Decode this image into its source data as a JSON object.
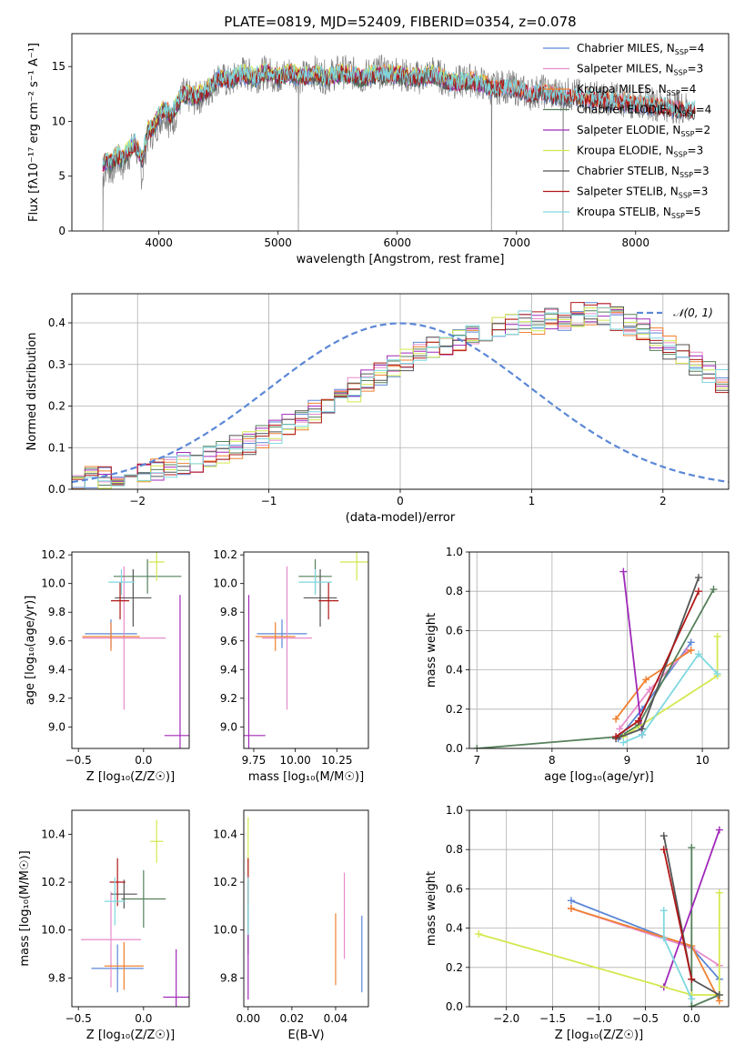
{
  "figure_title": "PLATE=0819, MJD=52409, FIBERID=0354, z=0.078",
  "colors": {
    "Chabrier MILES": "#5b87d6",
    "Salpeter MILES": "#e88ccb",
    "Kroupa MILES": "#f08030",
    "Chabrier ELODIE": "#55805a",
    "Salpeter ELODIE": "#a029b8",
    "Kroupa ELODIE": "#d4e84f",
    "Chabrier STELIB": "#555555",
    "Salpeter STELIB": "#b01818",
    "Kroupa STELIB": "#7fd8e0"
  },
  "chart_data": [
    {
      "id": "spectrum",
      "type": "line",
      "title": "PLATE=0819, MJD=52409, FIBERID=0354, z=0.078",
      "xlabel": "wavelength [Angstrom, rest frame]",
      "ylabel": "Flux [fλ10⁻¹⁷ erg cm⁻² s⁻¹ A⁻¹]",
      "xlim": [
        3270,
        8780
      ],
      "ylim": [
        0,
        18
      ],
      "xticks": [
        4000,
        5000,
        6000,
        7000,
        8000
      ],
      "yticks": [
        0,
        5,
        10,
        15
      ],
      "grid": false,
      "legend_position": "upper right",
      "data_series": {
        "name": "data",
        "color": "#808080",
        "x": [
          3530,
          3560,
          3600,
          3650,
          3700,
          3750,
          3800,
          3860,
          3900,
          3950,
          4000,
          4050,
          4100,
          4200,
          4300,
          4400,
          4500,
          4600,
          4700,
          4800,
          4900,
          5000,
          5100,
          5200,
          5300,
          5400,
          5500,
          5600,
          5700,
          5800,
          5900,
          6000,
          6100,
          6200,
          6300,
          6400,
          6500,
          6600,
          6700,
          6800,
          6900,
          7000,
          7100,
          7200,
          7300,
          7400
        ],
        "y": [
          5.0,
          6.0,
          5.5,
          6.5,
          6.0,
          7.0,
          8.0,
          5.0,
          8.5,
          9.0,
          10.0,
          11.0,
          9.5,
          12.5,
          12.0,
          12.5,
          14.0,
          13.5,
          14.5,
          14.0,
          14.5,
          14.0,
          14.5,
          14.0,
          14.5,
          14.0,
          14.5,
          14.5,
          14.0,
          14.5,
          14.5,
          14.5,
          14.0,
          14.0,
          14.5,
          13.8,
          13.5,
          13.8,
          13.5,
          13.0,
          13.2,
          13.0,
          12.5,
          12.8,
          12.5,
          12.5
        ]
      },
      "model_x": [
        3530,
        3560,
        3600,
        3650,
        3700,
        3750,
        3800,
        3860,
        3900,
        3950,
        4000,
        4050,
        4100,
        4200,
        4300,
        4400,
        4500,
        4600,
        4700,
        4800,
        4900,
        5000,
        5100,
        5200,
        5300,
        5400,
        5500,
        5600,
        5700,
        5800,
        5900,
        6000,
        6100,
        6200,
        6300,
        6400,
        6500,
        6600,
        6700,
        6800,
        6900,
        7000,
        7100,
        7200,
        7300,
        7400
      ],
      "model_y": [
        6.0,
        6.5,
        6.2,
        7.0,
        6.5,
        7.5,
        8.0,
        6.5,
        9.0,
        9.5,
        10.5,
        11.2,
        10.5,
        12.5,
        12.3,
        12.8,
        14.0,
        13.8,
        14.3,
        14.0,
        14.5,
        14.0,
        14.4,
        14.0,
        14.3,
        14.0,
        14.3,
        14.3,
        14.0,
        14.3,
        14.3,
        14.3,
        14.0,
        14.0,
        14.3,
        13.8,
        13.5,
        13.7,
        13.5,
        13.0,
        13.1,
        13.0,
        12.5,
        12.7,
        12.4,
        12.3
      ],
      "series": [
        {
          "name": "Chabrier MILES",
          "n_ssp": "4",
          "x_end": 8400
        },
        {
          "name": "Salpeter MILES",
          "n_ssp": "3",
          "x_end": 8400
        },
        {
          "name": "Kroupa MILES",
          "n_ssp": "4",
          "x_end": 8400
        },
        {
          "name": "Chabrier ELODIE",
          "n_ssp": "4",
          "x_end": 6800
        },
        {
          "name": "Salpeter ELODIE",
          "n_ssp": "2",
          "x_end": 6800
        },
        {
          "name": "Kroupa ELODIE",
          "n_ssp": "3",
          "x_end": 6800
        },
        {
          "name": "Chabrier STELIB",
          "n_ssp": "3",
          "x_end": 8500
        },
        {
          "name": "Salpeter STELIB",
          "n_ssp": "3",
          "x_end": 8500
        },
        {
          "name": "Kroupa STELIB",
          "n_ssp": "5",
          "x_end": 8500
        }
      ]
    },
    {
      "id": "residuals",
      "type": "histogram",
      "xlabel": "(data-model)/error",
      "ylabel": "Normed distribution",
      "xlim": [
        -2.5,
        2.5
      ],
      "ylim": [
        0,
        0.47
      ],
      "xticks": [
        -2,
        -1,
        0,
        1,
        2
      ],
      "yticks": [
        0.0,
        0.1,
        0.2,
        0.3,
        0.4
      ],
      "grid": true,
      "legend_position": "upper right",
      "reference_curve": {
        "label": "𝒩(0, 1)",
        "mean": 0,
        "sigma": 1,
        "color": "#5b87d6"
      },
      "bin_start": -2.5,
      "bin_width": 0.1,
      "base_values": [
        0.02,
        0.025,
        0.028,
        0.032,
        0.036,
        0.04,
        0.045,
        0.052,
        0.06,
        0.068,
        0.078,
        0.088,
        0.1,
        0.112,
        0.125,
        0.14,
        0.155,
        0.17,
        0.188,
        0.205,
        0.222,
        0.24,
        0.258,
        0.275,
        0.292,
        0.31,
        0.325,
        0.34,
        0.352,
        0.363,
        0.374,
        0.382,
        0.39,
        0.396,
        0.4,
        0.402,
        0.405,
        0.41,
        0.42,
        0.425,
        0.42,
        0.41,
        0.395,
        0.38,
        0.36,
        0.34,
        0.32,
        0.3,
        0.28,
        0.262,
        0.24,
        0.22,
        0.2,
        0.18,
        0.16,
        0.14,
        0.125,
        0.11,
        0.095,
        0.085,
        0.075,
        0.065,
        0.058,
        0.05,
        0.045,
        0.04,
        0.036,
        0.032,
        0.028,
        0.025,
        0.022,
        0.02,
        0.018,
        0.016,
        0.015,
        0.014,
        0.013,
        0.012,
        0.011,
        0.01
      ],
      "series": [
        "Chabrier MILES",
        "Salpeter MILES",
        "Kroupa MILES",
        "Chabrier ELODIE",
        "Salpeter ELODIE",
        "Kroupa ELODIE",
        "Chabrier STELIB",
        "Salpeter STELIB",
        "Kroupa STELIB"
      ]
    },
    {
      "id": "age_vs_Z",
      "type": "errorbar",
      "xlabel": "Z [log₁₀(Z/Z☉)]",
      "ylabel": "age  [log₁₀(age/yr)]",
      "xlim": [
        -0.55,
        0.35
      ],
      "ylim": [
        8.85,
        10.22
      ],
      "xticks": [
        -0.5,
        0.0
      ],
      "yticks": [
        9.0,
        9.2,
        9.4,
        9.6,
        9.8,
        10.0,
        10.2
      ],
      "points": [
        {
          "name": "Chabrier MILES",
          "x": -0.25,
          "xerr": 0.2,
          "y": 9.65,
          "yerr": 0.1
        },
        {
          "name": "Salpeter MILES",
          "x": -0.15,
          "xerr": 0.32,
          "y": 9.62,
          "yerr": 0.5
        },
        {
          "name": "Kroupa MILES",
          "x": -0.25,
          "xerr": 0.22,
          "y": 9.63,
          "yerr": 0.1
        },
        {
          "name": "Chabrier ELODIE",
          "x": 0.03,
          "xerr": 0.26,
          "y": 10.05,
          "yerr": 0.12
        },
        {
          "name": "Salpeter ELODIE",
          "x": 0.28,
          "xerr": 0.12,
          "y": 8.94,
          "yerr": 0.98
        },
        {
          "name": "Kroupa ELODIE",
          "x": 0.1,
          "xerr": 0.06,
          "y": 10.15,
          "yerr": 0.13
        },
        {
          "name": "Chabrier STELIB",
          "x": -0.08,
          "xerr": 0.14,
          "y": 9.9,
          "yerr": 0.2
        },
        {
          "name": "Salpeter STELIB",
          "x": -0.18,
          "xerr": 0.07,
          "y": 9.88,
          "yerr": 0.13
        },
        {
          "name": "Kroupa STELIB",
          "x": -0.17,
          "xerr": 0.1,
          "y": 10.01,
          "yerr": 0.09
        }
      ]
    },
    {
      "id": "age_vs_mass",
      "type": "errorbar",
      "xlabel": "mass [log₁₀(M/M☉)]",
      "ylabel": "",
      "xlim": [
        9.69,
        10.44
      ],
      "ylim": [
        8.85,
        10.22
      ],
      "xticks": [
        9.75,
        10.0,
        10.25
      ],
      "yticks": [
        9.0,
        9.2,
        9.4,
        9.6,
        9.8,
        10.0,
        10.2
      ],
      "points": [
        {
          "name": "Chabrier MILES",
          "x": 9.92,
          "xerr": 0.15,
          "y": 9.65,
          "yerr": 0.1
        },
        {
          "name": "Salpeter MILES",
          "x": 9.95,
          "xerr": 0.15,
          "y": 9.62,
          "yerr": 0.5
        },
        {
          "name": "Kroupa MILES",
          "x": 9.88,
          "xerr": 0.12,
          "y": 9.63,
          "yerr": 0.1
        },
        {
          "name": "Chabrier ELODIE",
          "x": 10.12,
          "xerr": 0.1,
          "y": 10.05,
          "yerr": 0.12
        },
        {
          "name": "Salpeter ELODIE",
          "x": 9.72,
          "xerr": 0.1,
          "y": 8.94,
          "yerr": 0.98
        },
        {
          "name": "Kroupa ELODIE",
          "x": 10.37,
          "xerr": 0.1,
          "y": 10.15,
          "yerr": 0.13
        },
        {
          "name": "Chabrier STELIB",
          "x": 10.15,
          "xerr": 0.1,
          "y": 9.9,
          "yerr": 0.2
        },
        {
          "name": "Salpeter STELIB",
          "x": 10.2,
          "xerr": 0.06,
          "y": 9.88,
          "yerr": 0.13
        },
        {
          "name": "Kroupa STELIB",
          "x": 10.12,
          "xerr": 0.1,
          "y": 10.01,
          "yerr": 0.09
        }
      ]
    },
    {
      "id": "weight_vs_age",
      "type": "line",
      "xlabel": "age  [log₁₀(age/yr)]",
      "ylabel": "mass weight",
      "xlim": [
        6.9,
        10.35
      ],
      "ylim": [
        0,
        1
      ],
      "xticks": [
        7,
        8,
        9,
        10
      ],
      "yticks": [
        0.0,
        0.2,
        0.4,
        0.6,
        0.8,
        1.0
      ],
      "grid": true,
      "series": [
        {
          "name": "Chabrier MILES",
          "x": [
            8.88,
            9.2,
            9.85
          ],
          "y": [
            0.05,
            0.2,
            0.54
          ]
        },
        {
          "name": "Salpeter MILES",
          "x": [
            8.9,
            9.3,
            9.8
          ],
          "y": [
            0.1,
            0.3,
            0.5
          ]
        },
        {
          "name": "Kroupa MILES",
          "x": [
            8.85,
            9.25,
            9.85
          ],
          "y": [
            0.15,
            0.35,
            0.5
          ]
        },
        {
          "name": "Chabrier ELODIE",
          "x": [
            7.0,
            8.9,
            9.15,
            10.15
          ],
          "y": [
            0.0,
            0.06,
            0.12,
            0.81
          ]
        },
        {
          "name": "Salpeter ELODIE",
          "x": [
            8.95,
            9.2
          ],
          "y": [
            0.9,
            0.07
          ]
        },
        {
          "name": "Kroupa ELODIE",
          "x": [
            8.95,
            10.2,
            10.2
          ],
          "y": [
            0.06,
            0.37,
            0.57
          ]
        },
        {
          "name": "Chabrier STELIB",
          "x": [
            8.85,
            9.2,
            9.95
          ],
          "y": [
            0.05,
            0.1,
            0.87
          ]
        },
        {
          "name": "Salpeter STELIB",
          "x": [
            8.85,
            9.15,
            9.95
          ],
          "y": [
            0.06,
            0.14,
            0.8
          ]
        },
        {
          "name": "Kroupa STELIB",
          "x": [
            8.95,
            9.2,
            9.95,
            10.2
          ],
          "y": [
            0.03,
            0.07,
            0.48,
            0.38
          ]
        }
      ]
    },
    {
      "id": "mass_vs_Z",
      "type": "errorbar",
      "xlabel": "Z [log₁₀(Z/Z☉)]",
      "ylabel": "mass [log₁₀(M/M☉)]",
      "xlim": [
        -0.55,
        0.35
      ],
      "ylim": [
        9.68,
        10.5
      ],
      "xticks": [
        -0.5,
        0.0
      ],
      "yticks": [
        9.8,
        10.0,
        10.2,
        10.4
      ],
      "points": [
        {
          "name": "Chabrier MILES",
          "x": -0.2,
          "xerr": 0.2,
          "y": 9.84,
          "yerr": 0.1
        },
        {
          "name": "Salpeter MILES",
          "x": -0.25,
          "xerr": 0.23,
          "y": 9.96,
          "yerr": 0.2
        },
        {
          "name": "Kroupa MILES",
          "x": -0.15,
          "xerr": 0.15,
          "y": 9.85,
          "yerr": 0.1
        },
        {
          "name": "Chabrier ELODIE",
          "x": 0.0,
          "xerr": 0.17,
          "y": 10.13,
          "yerr": 0.12
        },
        {
          "name": "Salpeter ELODIE",
          "x": 0.25,
          "xerr": 0.1,
          "y": 9.72,
          "yerr": 0.2
        },
        {
          "name": "Kroupa ELODIE",
          "x": 0.1,
          "xerr": 0.05,
          "y": 10.37,
          "yerr": 0.09
        },
        {
          "name": "Chabrier STELIB",
          "x": -0.15,
          "xerr": 0.1,
          "y": 10.15,
          "yerr": 0.06
        },
        {
          "name": "Salpeter STELIB",
          "x": -0.2,
          "xerr": 0.06,
          "y": 10.2,
          "yerr": 0.1
        },
        {
          "name": "Kroupa STELIB",
          "x": -0.22,
          "xerr": 0.08,
          "y": 10.12,
          "yerr": 0.1
        }
      ]
    },
    {
      "id": "mass_vs_ebv",
      "type": "errorbar",
      "xlabel": "E(B-V)",
      "ylabel": "",
      "xlim": [
        -0.002,
        0.055
      ],
      "ylim": [
        9.68,
        10.5
      ],
      "xticks": [
        0.0,
        0.02,
        0.04
      ],
      "yticks": [
        9.8,
        10.0,
        10.2,
        10.4
      ],
      "points": [
        {
          "name": "Chabrier MILES",
          "x": 0.052,
          "xerr": 0,
          "y": 9.9,
          "yerr": 0.16
        },
        {
          "name": "Salpeter MILES",
          "x": 0.044,
          "xerr": 0,
          "y": 10.06,
          "yerr": 0.18
        },
        {
          "name": "Kroupa MILES",
          "x": 0.04,
          "xerr": 0,
          "y": 9.92,
          "yerr": 0.15
        },
        {
          "name": "Chabrier ELODIE",
          "x": 0.0,
          "xerr": 0,
          "y": 10.0,
          "yerr": 0.1
        },
        {
          "name": "Salpeter ELODIE",
          "x": 0.0,
          "xerr": 0,
          "y": 9.85,
          "yerr": 0.14
        },
        {
          "name": "Kroupa ELODIE",
          "x": 0.0,
          "xerr": 0,
          "y": 10.35,
          "yerr": 0.12
        },
        {
          "name": "Chabrier STELIB",
          "x": 0.0,
          "xerr": 0,
          "y": 10.1,
          "yerr": 0.1
        },
        {
          "name": "Salpeter STELIB",
          "x": 0.0,
          "xerr": 0,
          "y": 10.2,
          "yerr": 0.1
        },
        {
          "name": "Kroupa STELIB",
          "x": 0.0,
          "xerr": 0,
          "y": 10.1,
          "yerr": 0.12
        }
      ]
    },
    {
      "id": "weight_vs_Z",
      "type": "line",
      "xlabel": "Z [log₁₀(Z/Z☉)]",
      "ylabel": "mass weight",
      "xlim": [
        -2.4,
        0.4
      ],
      "ylim": [
        0,
        1
      ],
      "xticks": [
        -2.0,
        -1.5,
        -1.0,
        -0.5,
        0.0
      ],
      "yticks": [
        0.0,
        0.2,
        0.4,
        0.6,
        0.8,
        1.0
      ],
      "grid": true,
      "series": [
        {
          "name": "Chabrier MILES",
          "x": [
            -1.3,
            0.0,
            0.3
          ],
          "y": [
            0.54,
            0.3,
            0.14
          ]
        },
        {
          "name": "Salpeter MILES",
          "x": [
            -1.3,
            0.0,
            0.3
          ],
          "y": [
            0.5,
            0.3,
            0.21
          ]
        },
        {
          "name": "Kroupa MILES",
          "x": [
            -1.3,
            0.0,
            0.3
          ],
          "y": [
            0.5,
            0.31,
            0.03
          ]
        },
        {
          "name": "Chabrier ELODIE",
          "x": [
            0.0,
            0.0,
            0.3
          ],
          "y": [
            0.81,
            0.0,
            0.06
          ]
        },
        {
          "name": "Salpeter ELODIE",
          "x": [
            0.3,
            -0.3
          ],
          "y": [
            0.9,
            0.1
          ]
        },
        {
          "name": "Kroupa ELODIE",
          "x": [
            -2.3,
            0.0,
            0.3,
            0.3
          ],
          "y": [
            0.37,
            0.06,
            0.06,
            0.58
          ]
        },
        {
          "name": "Chabrier STELIB",
          "x": [
            -0.3,
            0.0,
            0.3
          ],
          "y": [
            0.87,
            0.14,
            0.06
          ]
        },
        {
          "name": "Salpeter STELIB",
          "x": [
            -0.3,
            0.0
          ],
          "y": [
            0.8,
            0.14
          ]
        },
        {
          "name": "Kroupa STELIB",
          "x": [
            -0.3,
            -0.3,
            0.0
          ],
          "y": [
            0.49,
            0.35,
            0.04
          ]
        }
      ]
    }
  ]
}
